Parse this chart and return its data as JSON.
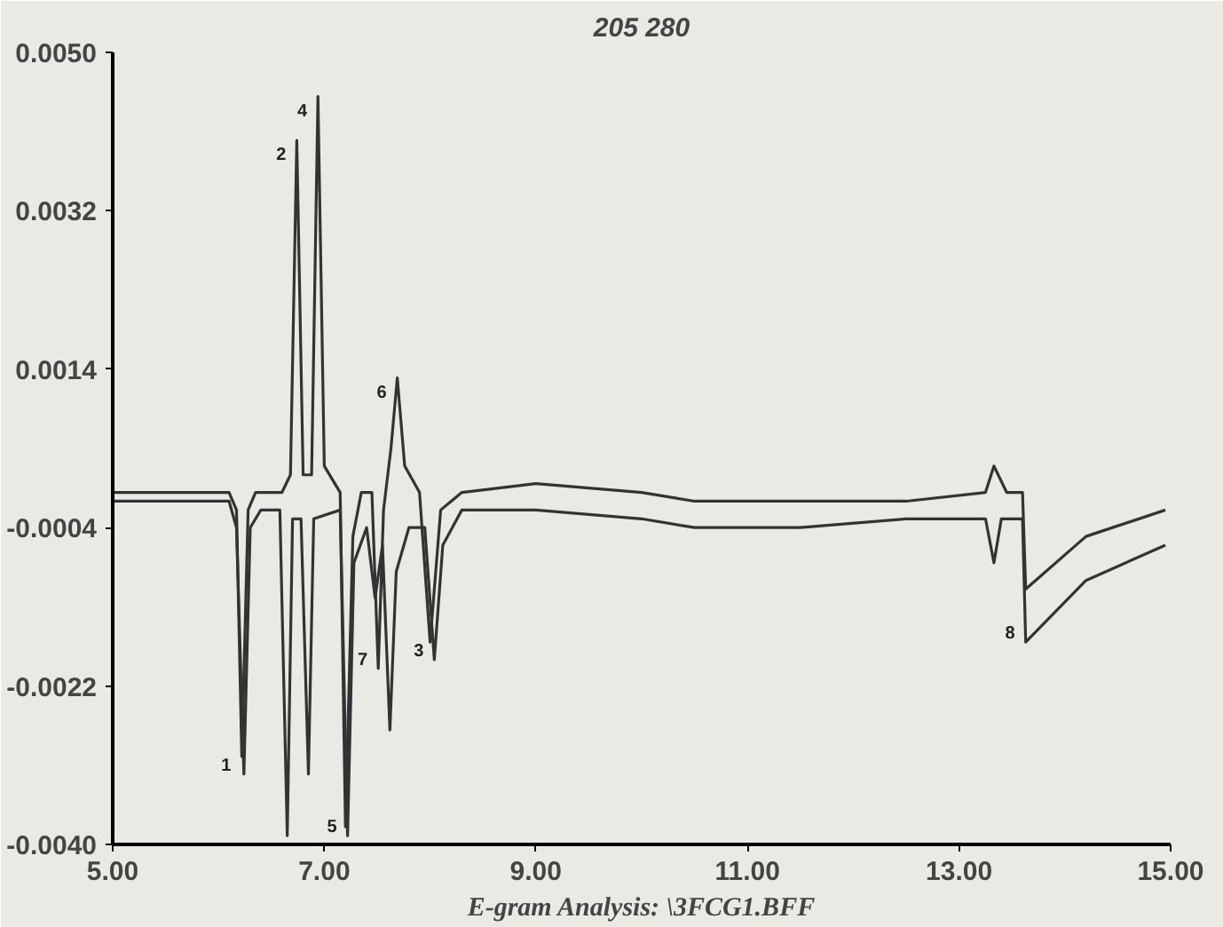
{
  "chart_data": {
    "type": "line",
    "title": "205 280",
    "xlabel": "E-gram Analysis: \\3FCG1.BFF",
    "xlim": [
      5,
      15
    ],
    "xticks": [
      {
        "value": 5,
        "label": "5.00"
      },
      {
        "value": 7,
        "label": "7.00"
      },
      {
        "value": 9,
        "label": "9.00"
      },
      {
        "value": 11,
        "label": "11.00"
      },
      {
        "value": 13,
        "label": "13.00"
      },
      {
        "value": 15,
        "label": "15.00"
      }
    ],
    "ylim": [
      -0.004,
      0.005
    ],
    "yticks": [
      {
        "value": 0.005,
        "label": "0.0050"
      },
      {
        "value": 0.0032,
        "label": "0.0032"
      },
      {
        "value": 0.0014,
        "label": "0.0014"
      },
      {
        "value": -0.0004,
        "label": "-0.0004"
      },
      {
        "value": -0.0022,
        "label": "-0.0022"
      },
      {
        "value": -0.004,
        "label": "-0.0040"
      }
    ],
    "grid": false,
    "series": [
      {
        "color": "#333333",
        "x": [
          5.0,
          6.1,
          6.17,
          6.22,
          6.28,
          6.35,
          6.6,
          6.68,
          6.74,
          6.8,
          6.88,
          6.94,
          7.0,
          7.15,
          7.2,
          7.27,
          7.35,
          7.45,
          7.51,
          7.56,
          7.63,
          7.69,
          7.76,
          7.9,
          8.0,
          8.1,
          8.3,
          9.0,
          10.0,
          10.5,
          11.5,
          12.5,
          13.25,
          13.33,
          13.45,
          13.6,
          13.63,
          14.2,
          14.95
        ],
        "values": [
          0.0,
          0.0,
          -0.0002,
          -0.003,
          -0.0002,
          0.0,
          0.0,
          0.0002,
          0.004,
          0.0002,
          0.0002,
          0.0045,
          0.0003,
          0.0,
          -0.0038,
          -0.0005,
          0.0,
          0.0,
          -0.002,
          -0.0002,
          0.0005,
          0.0013,
          0.0003,
          0.0,
          -0.0017,
          -0.0002,
          0.0,
          0.0001,
          0.0,
          -0.0001,
          -0.0001,
          -0.0001,
          0.0,
          0.0003,
          0.0,
          0.0,
          -0.0011,
          -0.0005,
          -0.0002
        ]
      },
      {
        "color": "#333333",
        "x": [
          5.0,
          6.1,
          6.17,
          6.24,
          6.3,
          6.4,
          6.58,
          6.65,
          6.7,
          6.78,
          6.85,
          6.9,
          7.15,
          7.22,
          7.28,
          7.4,
          7.48,
          7.55,
          7.62,
          7.68,
          7.8,
          7.95,
          8.04,
          8.12,
          8.3,
          9.0,
          10.0,
          10.5,
          11.5,
          12.5,
          13.25,
          13.33,
          13.4,
          13.6,
          13.63,
          14.2,
          14.95
        ],
        "values": [
          -0.0001,
          -0.0001,
          -0.0004,
          -0.0032,
          -0.0004,
          -0.0002,
          -0.0002,
          -0.0039,
          -0.0003,
          -0.0003,
          -0.0032,
          -0.0003,
          -0.0002,
          -0.0039,
          -0.0008,
          -0.0004,
          -0.0012,
          -0.0006,
          -0.0027,
          -0.0009,
          -0.0004,
          -0.0004,
          -0.0019,
          -0.0006,
          -0.0002,
          -0.0002,
          -0.0003,
          -0.0004,
          -0.0004,
          -0.0003,
          -0.0003,
          -0.0008,
          -0.0003,
          -0.0003,
          -0.0017,
          -0.001,
          -0.0006
        ]
      }
    ],
    "annotations": [
      {
        "text": "1",
        "x": 6.22,
        "y": -0.0032
      },
      {
        "text": "2",
        "x": 6.74,
        "y": 0.004
      },
      {
        "text": "4",
        "x": 6.94,
        "y": 0.0045
      },
      {
        "text": "5",
        "x": 7.22,
        "y": -0.0039
      },
      {
        "text": "7",
        "x": 7.51,
        "y": -0.002
      },
      {
        "text": "6",
        "x": 7.69,
        "y": 0.0013
      },
      {
        "text": "3",
        "x": 8.04,
        "y": -0.0019
      },
      {
        "text": "8",
        "x": 13.63,
        "y": -0.0017
      }
    ]
  }
}
